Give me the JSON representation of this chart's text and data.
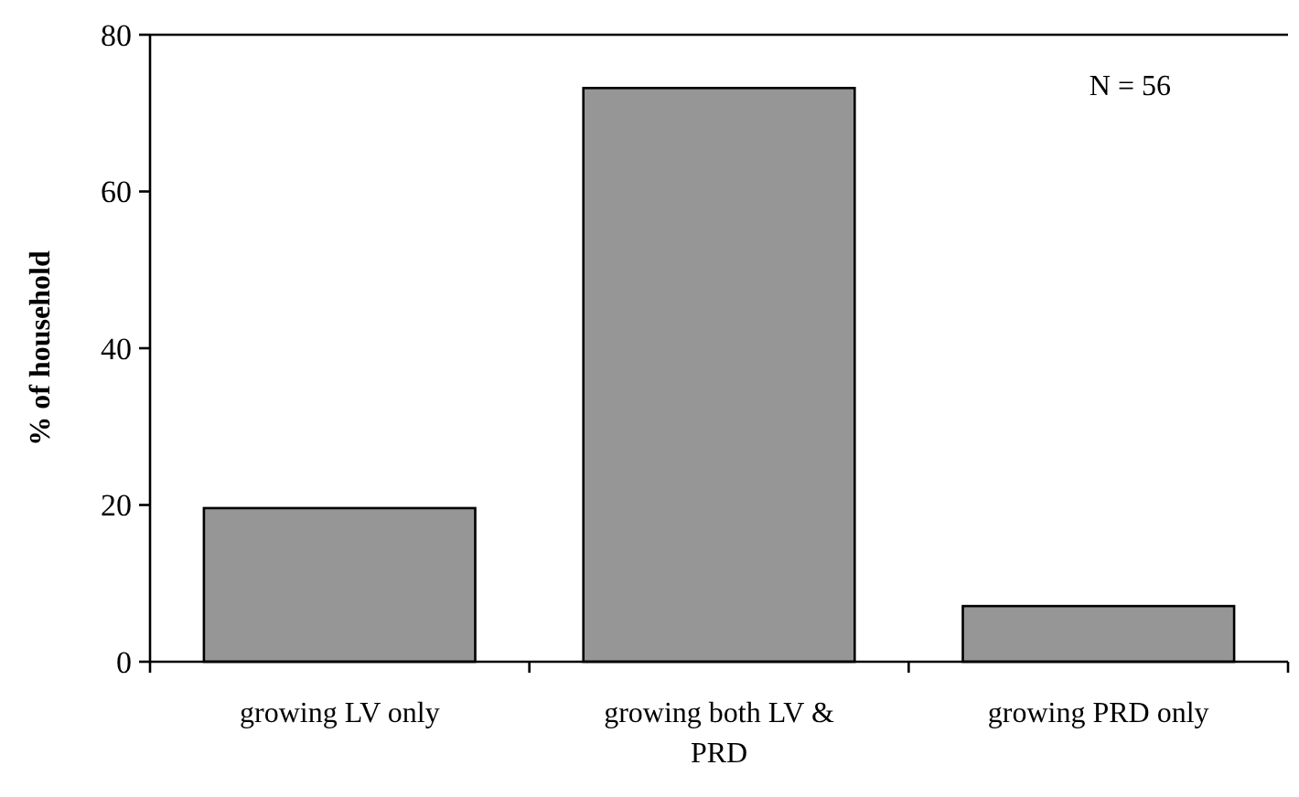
{
  "chart_data": {
    "type": "bar",
    "ylabel": "% of household",
    "categories": [
      "growing LV only",
      "growing both LV & PRD",
      "growing PRD only"
    ],
    "values": [
      19.6,
      73.2,
      7.1
    ],
    "color": "#969696",
    "ylim": [
      0,
      80
    ],
    "yticks": [
      0,
      20,
      40,
      60,
      80
    ],
    "grid": false,
    "annotations": [
      "N = 56"
    ]
  }
}
